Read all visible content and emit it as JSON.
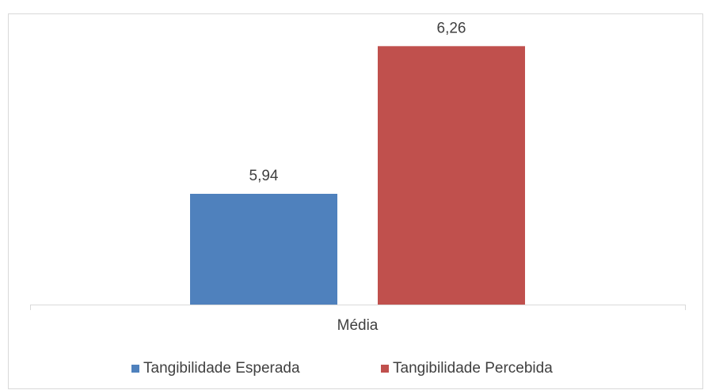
{
  "chart_data": {
    "type": "bar",
    "categories": [
      "Média"
    ],
    "series": [
      {
        "name": "Tangibilidade Esperada",
        "color": "#4f81bd",
        "values": [
          5.94
        ],
        "value_labels": [
          "5,94"
        ]
      },
      {
        "name": "Tangibilidade Percebida",
        "color": "#c0504d",
        "values": [
          6.26
        ],
        "value_labels": [
          "6,26"
        ]
      }
    ],
    "ylim": [
      5.7,
      6.3
    ],
    "legend": "bottom"
  }
}
